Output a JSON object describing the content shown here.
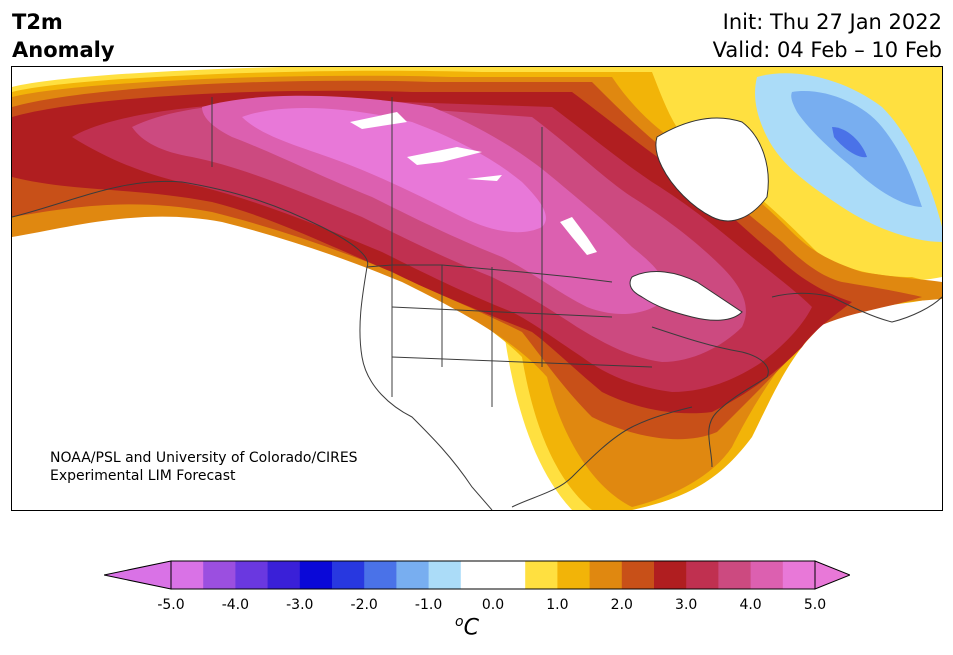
{
  "header": {
    "variable": "T2m",
    "variable_type": "Anomaly",
    "init": "Init: Thu 27 Jan 2022",
    "valid": "Valid: 04 Feb – 10 Feb"
  },
  "credit": {
    "line1": "NOAA/PSL and University of Colorado/CIRES",
    "line2": "Experimental LIM Forecast"
  },
  "colorbar": {
    "unit_prefix": "o",
    "unit": "C",
    "ticks": [
      "-5.0",
      "-4.0",
      "-3.0",
      "-2.0",
      "-1.0",
      "0.0",
      "1.0",
      "2.0",
      "3.0",
      "4.0",
      "5.0"
    ],
    "levels": [
      -5.0,
      -4.5,
      -4.0,
      -3.5,
      -3.0,
      -2.5,
      -2.0,
      -1.5,
      -1.0,
      -0.5,
      0.5,
      1.0,
      1.5,
      2.0,
      2.5,
      3.0,
      3.5,
      4.0,
      4.5,
      5.0
    ],
    "colors": [
      "#d972e6",
      "#9b4fe0",
      "#6a38e0",
      "#3a20d8",
      "#0a08d8",
      "#2838e0",
      "#4a72e8",
      "#78aef0",
      "#abdcf8",
      "#ffffff",
      "#ffffff",
      "#ffe040",
      "#f2b408",
      "#e08810",
      "#c85018",
      "#b01e20",
      "#c03050",
      "#cc4a80",
      "#dc60b0",
      "#e878d8"
    ],
    "under_color": "#d972e6",
    "over_color": "#e878d8"
  },
  "map": {
    "region": "North America",
    "max_warm_anomaly_region": "Canadian Prairies / Northwest Territories",
    "cold_anomaly_region": "Northern Quebec / Labrador"
  }
}
